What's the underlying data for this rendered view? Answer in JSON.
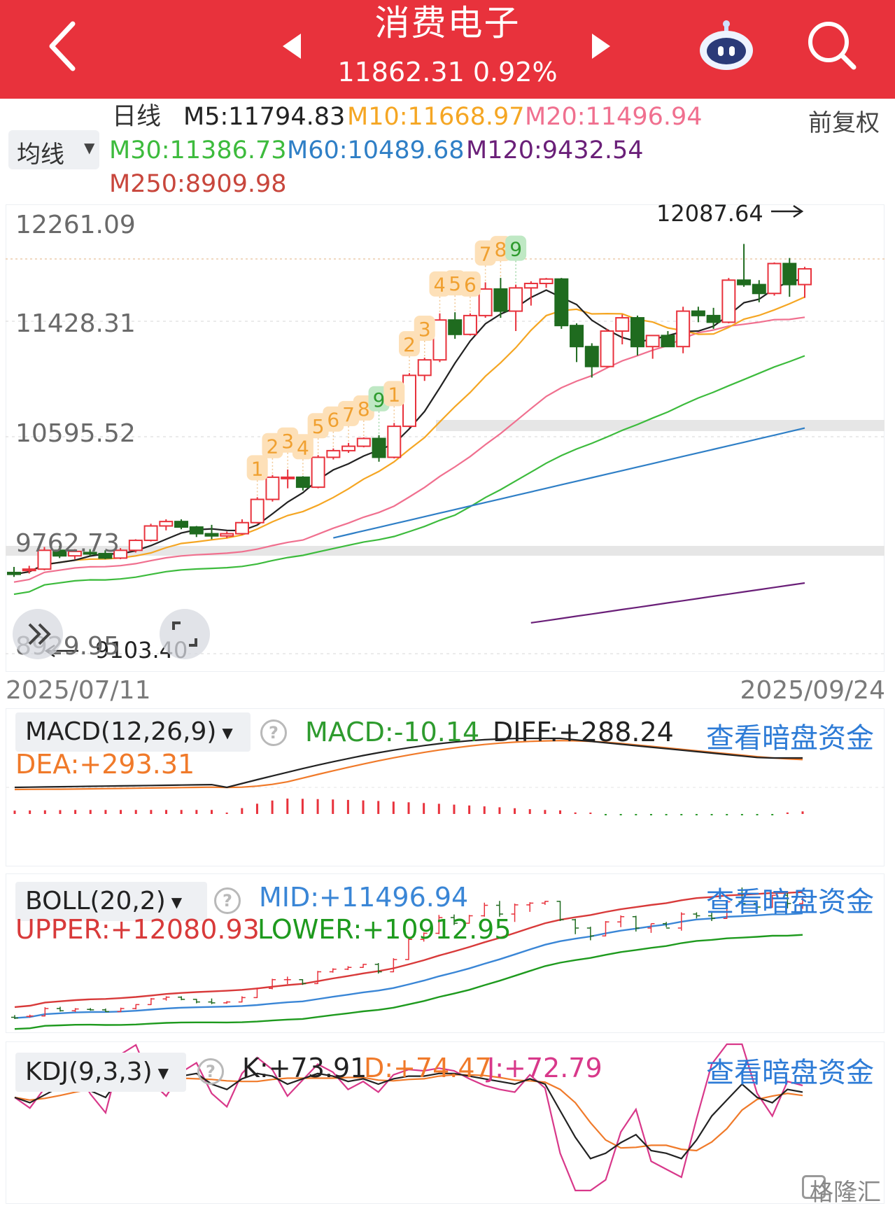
{
  "header": {
    "title": "消费电子",
    "price": "11862.31",
    "change": "0.92%",
    "price_line": "11862.31 0.92%",
    "icons": [
      "back-arrow-icon",
      "prev-triangle-icon",
      "next-triangle-icon",
      "robot-assistant-icon",
      "search-icon"
    ]
  },
  "ma_legend": {
    "period": "日线",
    "dropdown": "均线",
    "adjust": "前复权",
    "items": [
      {
        "label": "M5:11794.83",
        "color": "#222222"
      },
      {
        "label": "M10:11668.97",
        "color": "#f5a623"
      },
      {
        "label": "M20:11496.94",
        "color": "#f0708f"
      },
      {
        "label": "M30:11386.73",
        "color": "#3dbb3d"
      },
      {
        "label": "M60:10489.68",
        "color": "#2f7fc6"
      },
      {
        "label": "M120:9432.54",
        "color": "#6a1f78"
      },
      {
        "label": "M250:8909.98",
        "color": "#c8463c"
      }
    ]
  },
  "main_chart": {
    "y_labels": [
      "12261.09",
      "11428.31",
      "10595.52",
      "9762.73",
      "8929.95"
    ],
    "high_label": "12087.64",
    "low_label": "9103.40",
    "start_date": "2025/07/11",
    "end_date": "2025/09/24",
    "td_counts": [
      "1",
      "2",
      "3",
      "4",
      "5",
      "6",
      "7",
      "8",
      "9",
      "1",
      "2",
      "3",
      "4",
      "5",
      "6",
      "7",
      "8",
      "9"
    ]
  },
  "macd": {
    "name": "MACD(12,26,9)",
    "macd": "MACD:-10.14",
    "diff": "DIFF:+288.24",
    "dea": "DEA:+293.31",
    "link": "查看暗盘资金"
  },
  "boll": {
    "name": "BOLL(20,2)",
    "mid": "MID:+11496.94",
    "upper": "UPPER:+12080.93",
    "lower": "LOWER:+10912.95",
    "link": "查看暗盘资金"
  },
  "kdj": {
    "name": "KDJ(9,3,3)",
    "k": "K:+73.91",
    "d": "D:+74.47",
    "j": "J:+72.79",
    "link": "查看暗盘资金"
  },
  "watermark": "格隆汇",
  "colors": {
    "header": "#e8323c",
    "up": "#e8323c",
    "down": "#1f6b1f",
    "link": "#2d7bd6"
  },
  "candles": [
    [
      9120,
      9170,
      9080,
      9103
    ],
    [
      9140,
      9180,
      9110,
      9150
    ],
    [
      9150,
      9350,
      9140,
      9320
    ],
    [
      9320,
      9360,
      9250,
      9270
    ],
    [
      9270,
      9330,
      9240,
      9310
    ],
    [
      9300,
      9330,
      9270,
      9290
    ],
    [
      9290,
      9320,
      9240,
      9250
    ],
    [
      9250,
      9340,
      9240,
      9320
    ],
    [
      9320,
      9420,
      9300,
      9410
    ],
    [
      9410,
      9560,
      9400,
      9540
    ],
    [
      9540,
      9600,
      9500,
      9580
    ],
    [
      9580,
      9600,
      9510,
      9530
    ],
    [
      9530,
      9540,
      9440,
      9470
    ],
    [
      9470,
      9550,
      9420,
      9450
    ],
    [
      9450,
      9490,
      9430,
      9470
    ],
    [
      9470,
      9600,
      9460,
      9570
    ],
    [
      9570,
      9800,
      9560,
      9780
    ],
    [
      9780,
      10000,
      9760,
      9980
    ],
    [
      9980,
      10050,
      9880,
      9980
    ],
    [
      9980,
      9990,
      9860,
      9890
    ],
    [
      9890,
      10180,
      9880,
      10160
    ],
    [
      10160,
      10240,
      10140,
      10220
    ],
    [
      10220,
      10290,
      10200,
      10260
    ],
    [
      10260,
      10340,
      10250,
      10330
    ],
    [
      10330,
      10360,
      10120,
      10160
    ],
    [
      10160,
      10470,
      10150,
      10440
    ],
    [
      10440,
      10920,
      10430,
      10900
    ],
    [
      10900,
      11060,
      10850,
      11040
    ],
    [
      11040,
      11460,
      11020,
      11400
    ],
    [
      11400,
      11470,
      11230,
      11270
    ],
    [
      11270,
      11460,
      11260,
      11440
    ],
    [
      11440,
      11740,
      11420,
      11680
    ],
    [
      11680,
      11780,
      11420,
      11480
    ],
    [
      11480,
      11720,
      11300,
      11690
    ],
    [
      11690,
      11750,
      11530,
      11730
    ],
    [
      11730,
      11780,
      11690,
      11770
    ],
    [
      11770,
      11780,
      11320,
      11350
    ],
    [
      11350,
      11370,
      11020,
      11160
    ],
    [
      11160,
      11190,
      10880,
      10980
    ],
    [
      10980,
      11320,
      10970,
      11300
    ],
    [
      11300,
      11450,
      11180,
      11420
    ],
    [
      11420,
      11440,
      11080,
      11160
    ],
    [
      11160,
      11260,
      11050,
      11260
    ],
    [
      11260,
      11300,
      11180,
      11160
    ],
    [
      11160,
      11520,
      11100,
      11480
    ],
    [
      11480,
      11520,
      11380,
      11440
    ],
    [
      11440,
      11510,
      11320,
      11380
    ],
    [
      11380,
      11780,
      11370,
      11760
    ],
    [
      11760,
      12087,
      11700,
      11720
    ],
    [
      11720,
      11760,
      11560,
      11640
    ],
    [
      11640,
      11920,
      11620,
      11910
    ],
    [
      11910,
      11960,
      11610,
      11720
    ],
    [
      11720,
      11880,
      11600,
      11862
    ]
  ]
}
